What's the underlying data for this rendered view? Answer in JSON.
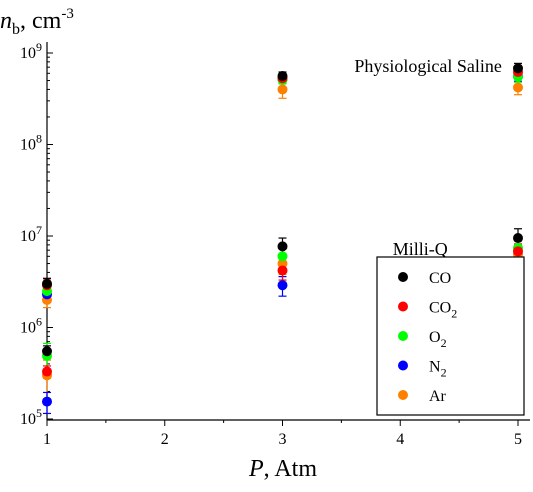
{
  "chart_data": {
    "type": "scatter",
    "title": "",
    "xlabel": {
      "italic": "P",
      "rest": ", Atm"
    },
    "ylabel": {
      "italic": "n",
      "subscript": "b",
      "rest": ", cm",
      "superscript": "-3"
    },
    "xlim": [
      1,
      5
    ],
    "ylim": [
      100000,
      1000000000
    ],
    "xscale": "linear",
    "yscale": "log",
    "grid": false,
    "legend_position": "bottom-right",
    "xticks": [
      "1",
      "2",
      "3",
      "4",
      "5"
    ],
    "yticks": [
      {
        "base": "10",
        "exp": "5",
        "value": 100000
      },
      {
        "base": "10",
        "exp": "6",
        "value": 1000000
      },
      {
        "base": "10",
        "exp": "7",
        "value": 10000000
      },
      {
        "base": "10",
        "exp": "8",
        "value": 100000000
      },
      {
        "base": "10",
        "exp": "9",
        "value": 1000000000
      }
    ],
    "annotations": [
      {
        "text": "Physiological Saline",
        "x": 4.5,
        "y": 700000000
      },
      {
        "text": "Milli-Q",
        "x": 4.0,
        "y": 7000000
      }
    ],
    "series": [
      {
        "name": "CO",
        "label_main": "CO",
        "label_sub": "",
        "color": "#000000",
        "points": [
          {
            "x": 1,
            "y": 3000000,
            "err": 450000
          },
          {
            "x": 1,
            "y": 550000,
            "err": 80000
          },
          {
            "x": 3,
            "y": 560000000,
            "err": 60000000
          },
          {
            "x": 3,
            "y": 7700000,
            "err": 1800000
          },
          {
            "x": 5,
            "y": 680000000,
            "err": 90000000
          },
          {
            "x": 5,
            "y": 9500000,
            "err": 2500000
          }
        ]
      },
      {
        "name": "CO2",
        "label_main": "CO",
        "label_sub": "2",
        "color": "#ff0000",
        "points": [
          {
            "x": 1,
            "y": 2900000,
            "err": 500000
          },
          {
            "x": 1,
            "y": 330000,
            "err": 50000
          },
          {
            "x": 3,
            "y": 530000000,
            "err": 50000000
          },
          {
            "x": 3,
            "y": 4200000,
            "err": 900000
          },
          {
            "x": 5,
            "y": 620000000,
            "err": 80000000
          },
          {
            "x": 5,
            "y": 6800000,
            "err": 1400000
          }
        ]
      },
      {
        "name": "O2",
        "label_main": "O",
        "label_sub": "2",
        "color": "#00ff00",
        "points": [
          {
            "x": 1,
            "y": 2500000,
            "err": 400000
          },
          {
            "x": 1,
            "y": 490000,
            "err": 180000
          },
          {
            "x": 3,
            "y": 510000000,
            "err": 50000000
          },
          {
            "x": 3,
            "y": 6000000,
            "err": 1200000
          },
          {
            "x": 5,
            "y": 550000000,
            "err": 70000000
          },
          {
            "x": 5,
            "y": 7400000,
            "err": 1500000
          }
        ]
      },
      {
        "name": "N2",
        "label_main": "N",
        "label_sub": "2",
        "color": "#0000ff",
        "points": [
          {
            "x": 1,
            "y": 2300000,
            "err": 350000
          },
          {
            "x": 1,
            "y": 155000,
            "err": 40000
          },
          {
            "x": 3,
            "y": 520000000,
            "err": 50000000
          },
          {
            "x": 3,
            "y": 2900000,
            "err": 700000
          },
          {
            "x": 5,
            "y": 560000000,
            "err": 70000000
          },
          {
            "x": 5,
            "y": 3900000,
            "err": 900000
          }
        ]
      },
      {
        "name": "Ar",
        "label_main": "Ar",
        "label_sub": "",
        "color": "#ff8000",
        "points": [
          {
            "x": 1,
            "y": 2000000,
            "err": 350000
          },
          {
            "x": 1,
            "y": 300000,
            "err": 140000
          },
          {
            "x": 3,
            "y": 400000000,
            "err": 80000000
          },
          {
            "x": 3,
            "y": 5000000,
            "err": 1200000
          },
          {
            "x": 5,
            "y": 420000000,
            "err": 70000000
          },
          {
            "x": 5,
            "y": 6300000,
            "err": 1400000
          }
        ]
      }
    ]
  }
}
